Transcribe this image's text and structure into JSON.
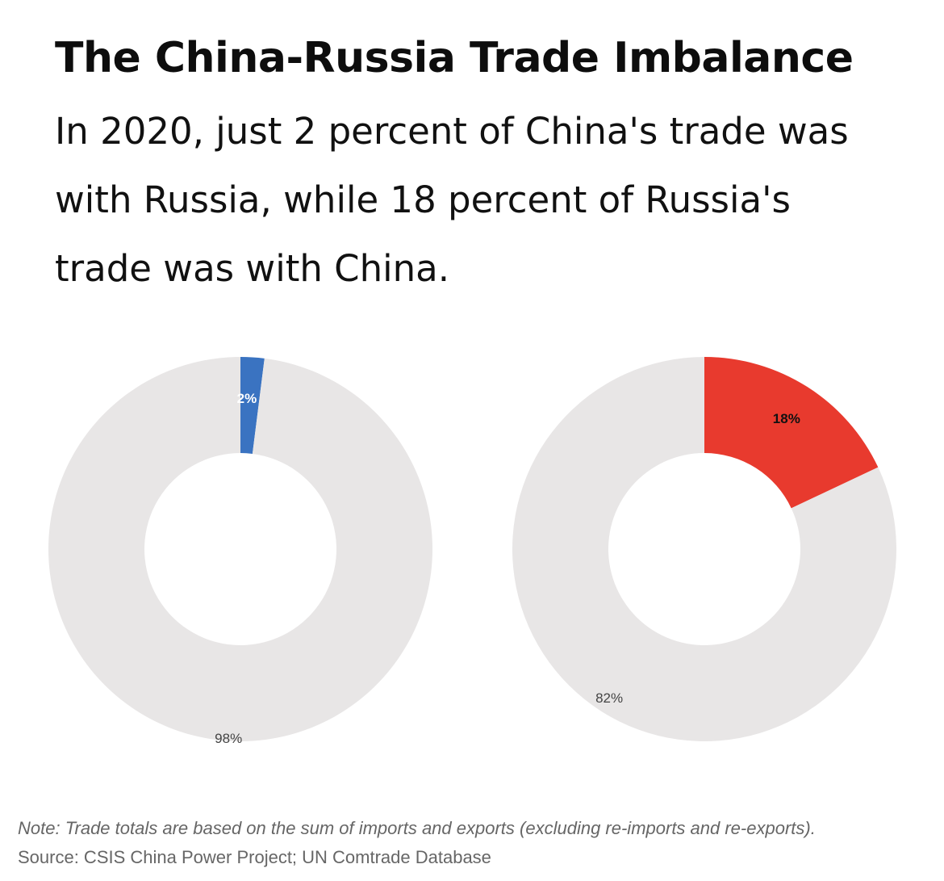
{
  "title": "The China-Russia Trade Imbalance",
  "subtitle": "In 2020, just 2 percent of China's trade was with Russia, while 18 percent of Russia's trade was with China.",
  "note": "Note: Trade totals are based on the sum of imports and exports (excluding re-imports and re-exports).",
  "source": "Source: CSIS China Power Project; UN Comtrade Database",
  "colors": {
    "background": "#ffffff",
    "remainder": "#e8e6e6",
    "china_share": "#3a73c1",
    "russia_share": "#e83a2e"
  },
  "chart_data": [
    {
      "type": "pie",
      "donut": true,
      "title": "",
      "slices": [
        {
          "label": "2%",
          "value": 2,
          "color": "#3a73c1",
          "label_color": "#ffffff"
        },
        {
          "label": "98%",
          "value": 98,
          "color": "#e8e6e6",
          "label_color": "#444444"
        }
      ],
      "start_angle_deg": 0,
      "direction": "clockwise",
      "legend": "none"
    },
    {
      "type": "pie",
      "donut": true,
      "title": "",
      "slices": [
        {
          "label": "18%",
          "value": 18,
          "color": "#e83a2e",
          "label_color": "#111111"
        },
        {
          "label": "82%",
          "value": 82,
          "color": "#e8e6e6",
          "label_color": "#444444"
        }
      ],
      "start_angle_deg": 0,
      "direction": "clockwise",
      "legend": "none"
    }
  ]
}
